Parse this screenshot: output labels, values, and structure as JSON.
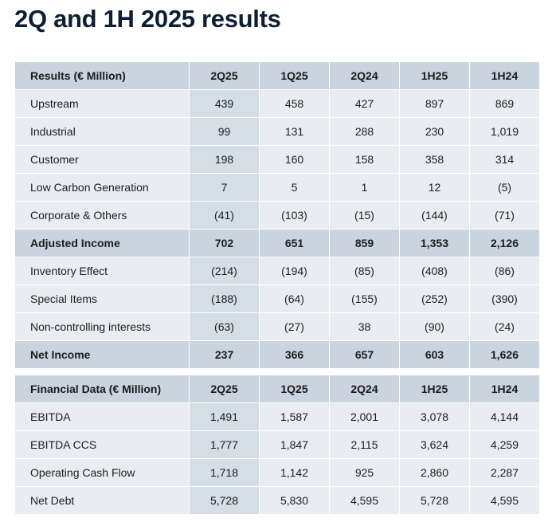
{
  "title": "2Q and 1H 2025 results",
  "results": {
    "header": [
      "Results (€ Million)",
      "2Q25",
      "1Q25",
      "2Q24",
      "1H25",
      "1H24"
    ],
    "rows": [
      {
        "label": "Upstream",
        "values": [
          "439",
          "458",
          "427",
          "897",
          "869"
        ],
        "bold": false
      },
      {
        "label": "Industrial",
        "values": [
          "99",
          "131",
          "288",
          "230",
          "1,019"
        ],
        "bold": false
      },
      {
        "label": "Customer",
        "values": [
          "198",
          "160",
          "158",
          "358",
          "314"
        ],
        "bold": false
      },
      {
        "label": "Low Carbon Generation",
        "values": [
          "7",
          "5",
          "1",
          "12",
          "(5)"
        ],
        "bold": false
      },
      {
        "label": "Corporate & Others",
        "values": [
          "(41)",
          "(103)",
          "(15)",
          "(144)",
          "(71)"
        ],
        "bold": false
      },
      {
        "label": "Adjusted Income",
        "values": [
          "702",
          "651",
          "859",
          "1,353",
          "2,126"
        ],
        "bold": true
      },
      {
        "label": "Inventory Effect",
        "values": [
          "(214)",
          "(194)",
          "(85)",
          "(408)",
          "(86)"
        ],
        "bold": false
      },
      {
        "label": "Special Items",
        "values": [
          "(188)",
          "(64)",
          "(155)",
          "(252)",
          "(390)"
        ],
        "bold": false
      },
      {
        "label": "Non-controlling interests",
        "values": [
          "(63)",
          "(27)",
          "38",
          "(90)",
          "(24)"
        ],
        "bold": false
      },
      {
        "label": "Net Income",
        "values": [
          "237",
          "366",
          "657",
          "603",
          "1,626"
        ],
        "bold": true
      }
    ]
  },
  "financial": {
    "header": [
      "Financial Data (€ Million)",
      "2Q25",
      "1Q25",
      "2Q24",
      "1H25",
      "1H24"
    ],
    "rows": [
      {
        "label": "EBITDA",
        "values": [
          "1,491",
          "1,587",
          "2,001",
          "3,078",
          "4,144"
        ],
        "bold": false
      },
      {
        "label": "EBITDA CCS",
        "values": [
          "1,777",
          "1,847",
          "2,115",
          "3,624",
          "4,259"
        ],
        "bold": false
      },
      {
        "label": "Operating Cash Flow",
        "values": [
          "1,718",
          "1,142",
          "925",
          "2,860",
          "2,287"
        ],
        "bold": false
      },
      {
        "label": "Net Debt",
        "values": [
          "5,728",
          "5,830",
          "4,595",
          "5,728",
          "4,595"
        ],
        "bold": false
      }
    ]
  }
}
